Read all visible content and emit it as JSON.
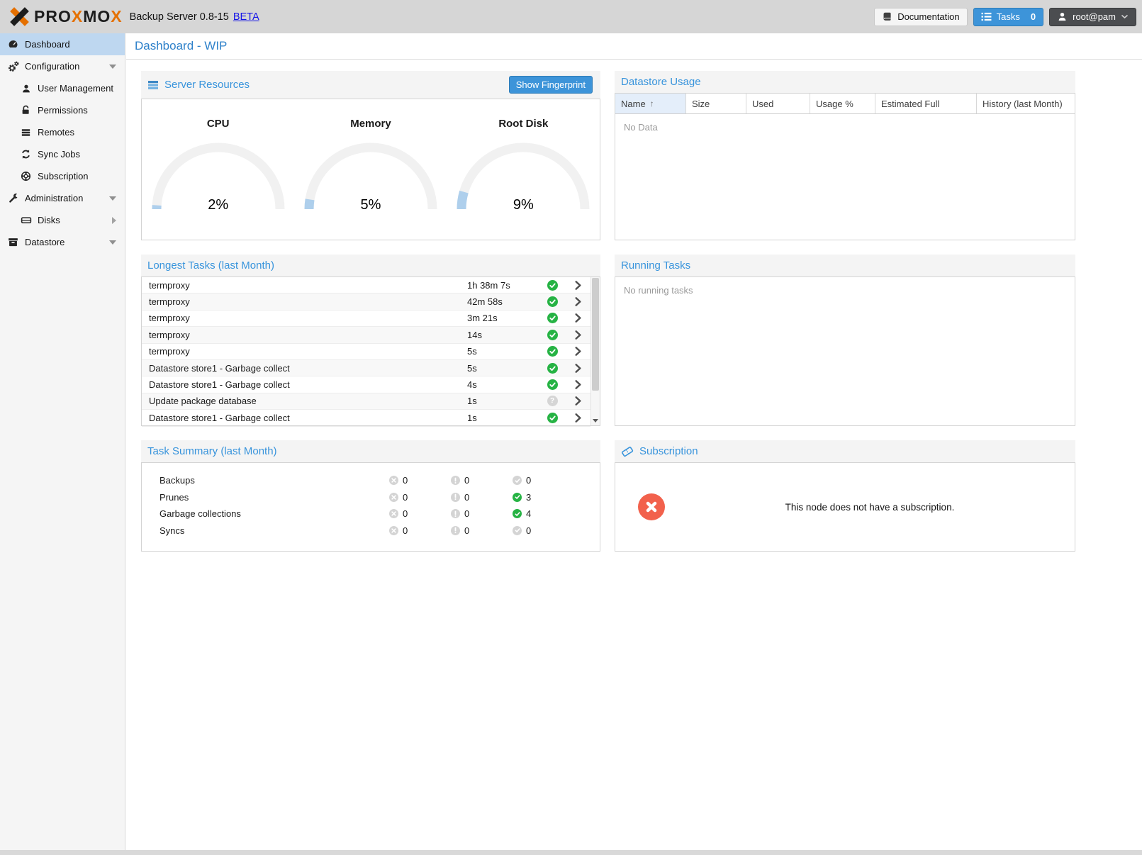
{
  "header": {
    "brand_segments": [
      {
        "text": "PRO",
        "tone": "dark"
      },
      {
        "text": "X",
        "tone": "orange"
      },
      {
        "text": "MO",
        "tone": "dark"
      },
      {
        "text": "X",
        "tone": "orange"
      }
    ],
    "product": "Backup Server 0.8-15",
    "beta_link": "BETA",
    "documentation_label": "Documentation",
    "tasks_label": "Tasks",
    "tasks_count": "0",
    "user_label": "root@pam"
  },
  "sidebar": {
    "items": [
      {
        "label": "Dashboard",
        "icon": "tachometer",
        "selected": true
      },
      {
        "label": "Configuration",
        "icon": "cogs",
        "caret": "down"
      },
      {
        "label": "User Management",
        "icon": "user"
      },
      {
        "label": "Permissions",
        "icon": "unlock"
      },
      {
        "label": "Remotes",
        "icon": "list-bars"
      },
      {
        "label": "Sync Jobs",
        "icon": "refresh"
      },
      {
        "label": "Subscription",
        "icon": "life-ring"
      },
      {
        "label": "Administration",
        "icon": "wrench",
        "caret": "down"
      },
      {
        "label": "Disks",
        "icon": "hdd",
        "caret": "right"
      },
      {
        "label": "Datastore",
        "icon": "archive",
        "caret": "down"
      }
    ]
  },
  "page_title": "Dashboard - WIP",
  "server_resources": {
    "title": "Server Resources",
    "fingerprint_button": "Show Fingerprint",
    "gauges": [
      {
        "label": "CPU",
        "value": 2,
        "display": "2%"
      },
      {
        "label": "Memory",
        "value": 5,
        "display": "5%"
      },
      {
        "label": "Root Disk",
        "value": 9,
        "display": "9%"
      }
    ]
  },
  "datastore_usage": {
    "title": "Datastore Usage",
    "columns": [
      "Name",
      "Size",
      "Used",
      "Usage %",
      "Estimated Full",
      "History (last Month)"
    ],
    "sorted_column": "Name",
    "empty_text": "No Data"
  },
  "longest_tasks": {
    "title": "Longest Tasks (last Month)",
    "rows": [
      {
        "name": "termproxy",
        "duration": "1h 38m 7s",
        "status": "ok"
      },
      {
        "name": "termproxy",
        "duration": "42m 58s",
        "status": "ok"
      },
      {
        "name": "termproxy",
        "duration": "3m 21s",
        "status": "ok"
      },
      {
        "name": "termproxy",
        "duration": "14s",
        "status": "ok"
      },
      {
        "name": "termproxy",
        "duration": "5s",
        "status": "ok"
      },
      {
        "name": "Datastore store1 - Garbage collect",
        "duration": "5s",
        "status": "ok"
      },
      {
        "name": "Datastore store1 - Garbage collect",
        "duration": "4s",
        "status": "ok"
      },
      {
        "name": "Update package database",
        "duration": "1s",
        "status": "unknown"
      },
      {
        "name": "Datastore store1 - Garbage collect",
        "duration": "1s",
        "status": "ok"
      }
    ]
  },
  "running_tasks": {
    "title": "Running Tasks",
    "empty_text": "No running tasks"
  },
  "task_summary": {
    "title": "Task Summary (last Month)",
    "rows": [
      {
        "label": "Backups",
        "errors": "0",
        "warnings": "0",
        "ok": "0",
        "ok_active": false
      },
      {
        "label": "Prunes",
        "errors": "0",
        "warnings": "0",
        "ok": "3",
        "ok_active": true
      },
      {
        "label": "Garbage collections",
        "errors": "0",
        "warnings": "0",
        "ok": "4",
        "ok_active": true
      },
      {
        "label": "Syncs",
        "errors": "0",
        "warnings": "0",
        "ok": "0",
        "ok_active": false
      }
    ]
  },
  "subscription": {
    "title": "Subscription",
    "message": "This node does not have a subscription."
  },
  "colors": {
    "accent_blue": "#3d94d9",
    "title_blue": "#2e81ca",
    "success_green": "#26b344",
    "error_red": "#f2614c",
    "gauge_fill": "#aecfec",
    "selected_nav": "#bed7f0",
    "brand_orange": "#e57000"
  }
}
